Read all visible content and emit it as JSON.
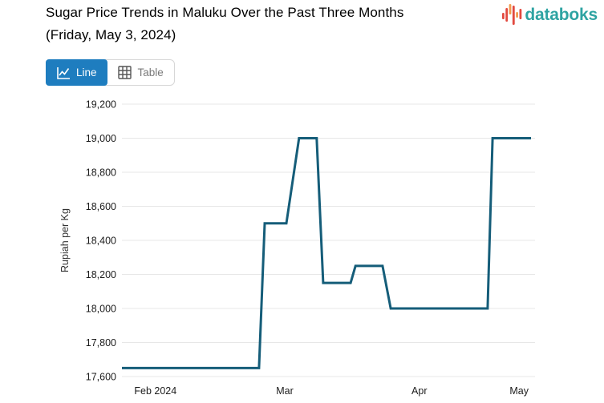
{
  "header": {
    "title_line1": "Sugar Price Trends in Maluku Over the Past Three Months",
    "title_line2": "(Friday, May 3, 2024)"
  },
  "brand": {
    "name": "databoks",
    "wordmark_color": "#2ea3a2",
    "icon_red": "#e2493f",
    "icon_orange": "#f29a4e"
  },
  "toolbar": {
    "line_label": "Line",
    "table_label": "Table",
    "active_view": "Line",
    "active_color": "#1e7dbf"
  },
  "chart_data": {
    "type": "line",
    "title": "Sugar Price Trends in Maluku Over the Past Three Months (Friday, May 3, 2024)",
    "xlabel": "",
    "ylabel": "Rupiah per Kg",
    "ylim": [
      17600,
      19200
    ],
    "grid": true,
    "grid_color": "#e7e7e7",
    "line_color": "#155d79",
    "yticks": [
      {
        "value": 17600,
        "label": "17,600"
      },
      {
        "value": 17800,
        "label": "17,800"
      },
      {
        "value": 18000,
        "label": "18,000"
      },
      {
        "value": 18200,
        "label": "18,200"
      },
      {
        "value": 18400,
        "label": "18,400"
      },
      {
        "value": 18600,
        "label": "18,600"
      },
      {
        "value": 18800,
        "label": "18,800"
      },
      {
        "value": 19000,
        "label": "19,000"
      },
      {
        "value": 19200,
        "label": "19,200"
      }
    ],
    "xticks": [
      {
        "label": "Feb 2024",
        "pos": 0.082
      },
      {
        "label": "Mar",
        "pos": 0.398
      },
      {
        "label": "Apr",
        "pos": 0.727
      },
      {
        "label": "May",
        "pos": 0.971
      }
    ],
    "points": [
      {
        "x": 0.0,
        "y": 17650
      },
      {
        "x": 0.335,
        "y": 17650
      },
      {
        "x": 0.349,
        "y": 18500
      },
      {
        "x": 0.402,
        "y": 18500
      },
      {
        "x": 0.433,
        "y": 19000
      },
      {
        "x": 0.476,
        "y": 19000
      },
      {
        "x": 0.492,
        "y": 18150
      },
      {
        "x": 0.559,
        "y": 18150
      },
      {
        "x": 0.571,
        "y": 18250
      },
      {
        "x": 0.637,
        "y": 18250
      },
      {
        "x": 0.657,
        "y": 18000
      },
      {
        "x": 0.894,
        "y": 18000
      },
      {
        "x": 0.906,
        "y": 19000
      },
      {
        "x": 1.0,
        "y": 19000
      }
    ]
  }
}
